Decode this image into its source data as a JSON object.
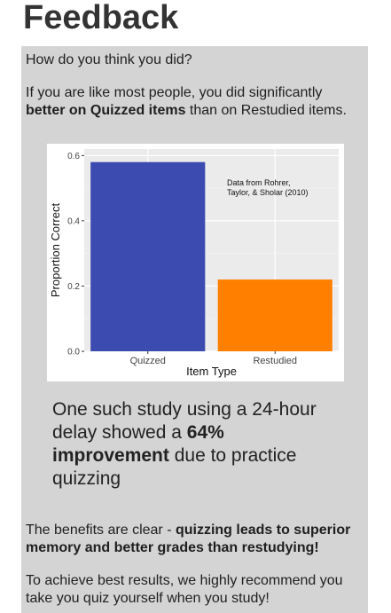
{
  "page": {
    "title": "Feedback",
    "question": "How do you think you did?",
    "intro_prefix": "If you are like most people, you did significantly ",
    "intro_bold": "better on Quizzed items",
    "intro_suffix": " than on Restudied items.",
    "study_prefix": "One such study using a 24-hour delay showed a ",
    "study_bold_pct": "64%",
    "study_bold_word": "improvement",
    "study_suffix": " due to practice quizzing",
    "benefits_prefix": "The benefits are clear - ",
    "benefits_bold": "quizzing leads to superior memory and better grades than restudying!",
    "recommend": "To achieve best results, we highly recommend you take you quiz yourself when you study!"
  },
  "chart_data": {
    "type": "bar",
    "categories": [
      "Quizzed",
      "Restudied"
    ],
    "values": [
      0.58,
      0.22
    ],
    "colors": [
      "#3b4bb0",
      "#ff8000"
    ],
    "xlabel": "Item Type",
    "ylabel": "Proportion Correct",
    "ylim": [
      0,
      0.62
    ],
    "yticks": [
      "0.0",
      "0.2",
      "0.4",
      "0.6"
    ],
    "ytick_values": [
      0,
      0.2,
      0.4,
      0.6
    ],
    "annotation_line1": "Data from Rohrer,",
    "annotation_line2": "Taylor, & Sholar (2010)",
    "grid": true,
    "panel_bg": "#ebebeb"
  }
}
